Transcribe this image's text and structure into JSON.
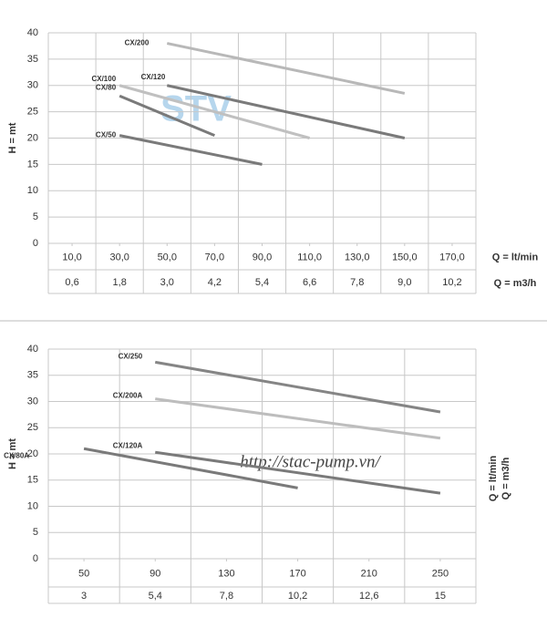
{
  "chart_data": [
    {
      "type": "line",
      "y_label": "H = mt",
      "x_label": "Q = lt/min",
      "x2_label": "Q = m3/h",
      "watermark": "STV",
      "ylim": [
        0,
        40
      ],
      "yticks": [
        0,
        5,
        10,
        15,
        20,
        25,
        30,
        35,
        40
      ],
      "grid": true,
      "xlim": [
        0,
        180
      ],
      "xticks": [
        {
          "value": 10,
          "label": "10,0"
        },
        {
          "value": 30,
          "label": "30,0"
        },
        {
          "value": 50,
          "label": "50,0"
        },
        {
          "value": 70,
          "label": "70,0"
        },
        {
          "value": 90,
          "label": "90,0"
        },
        {
          "value": 110,
          "label": "110,0"
        },
        {
          "value": 130,
          "label": "130,0"
        },
        {
          "value": 150,
          "label": "150,0"
        },
        {
          "value": 170,
          "label": "170,0"
        }
      ],
      "x2lim": [
        0,
        10.8
      ],
      "x2ticks": [
        {
          "value": 0.6,
          "label": "0,6"
        },
        {
          "value": 1.8,
          "label": "1,8"
        },
        {
          "value": 3.0,
          "label": "3,0"
        },
        {
          "value": 4.2,
          "label": "4,2"
        },
        {
          "value": 5.4,
          "label": "5,4"
        },
        {
          "value": 6.6,
          "label": "6,6"
        },
        {
          "value": 7.8,
          "label": "7,8"
        },
        {
          "value": 9.0,
          "label": "9,0"
        },
        {
          "value": 10.2,
          "label": "10,2"
        }
      ],
      "series": [
        {
          "name": "CX/200",
          "color": "#b8b8b8",
          "x": [
            50,
            150
          ],
          "values": [
            38,
            28.5
          ]
        },
        {
          "name": "CX/120",
          "color": "#7a7a7a",
          "x": [
            50,
            150
          ],
          "values": [
            30,
            20
          ]
        },
        {
          "name": "CX/100",
          "color": "#c0c0c0",
          "x": [
            30,
            110
          ],
          "values": [
            30,
            20
          ]
        },
        {
          "name": "CX/80",
          "color": "#7a7a7a",
          "x": [
            30,
            70
          ],
          "values": [
            28,
            20.5
          ]
        },
        {
          "name": "CX/50",
          "color": "#7a7a7a",
          "x": [
            30,
            90
          ],
          "values": [
            20.5,
            15
          ]
        }
      ]
    },
    {
      "type": "line",
      "y_label": "H = mt",
      "x_label": "Q = lt/min",
      "x2_label": "Q = m3/h",
      "watermark": "http://stac-pump.vn/",
      "ylim": [
        0,
        40
      ],
      "yticks": [
        0,
        5,
        10,
        15,
        20,
        25,
        30,
        35,
        40
      ],
      "grid": true,
      "xlim": [
        30,
        270
      ],
      "xticks": [
        50,
        90,
        130,
        170,
        210,
        250
      ],
      "x2lim": [
        1.8,
        16.2
      ],
      "x2ticks": [
        3,
        {
          "value": 5.4,
          "label": "5,4"
        },
        {
          "value": 7.8,
          "label": "7,8"
        },
        {
          "value": 10.2,
          "label": "10,2"
        },
        {
          "value": 12.6,
          "label": "12,6"
        },
        15
      ],
      "series": [
        {
          "name": "CX/250",
          "color": "#858585",
          "x": [
            90,
            250
          ],
          "values": [
            37.5,
            28
          ]
        },
        {
          "name": "CX/200A",
          "color": "#bdbdbd",
          "x": [
            90,
            250
          ],
          "values": [
            30.5,
            23
          ]
        },
        {
          "name": "CX/120A",
          "color": "#7a7a7a",
          "x": [
            90,
            250
          ],
          "values": [
            20.3,
            12.5
          ]
        },
        {
          "name": "CX/80A",
          "color": "#7a7a7a",
          "x": [
            50,
            170
          ],
          "values": [
            21,
            13.5
          ]
        }
      ]
    }
  ]
}
